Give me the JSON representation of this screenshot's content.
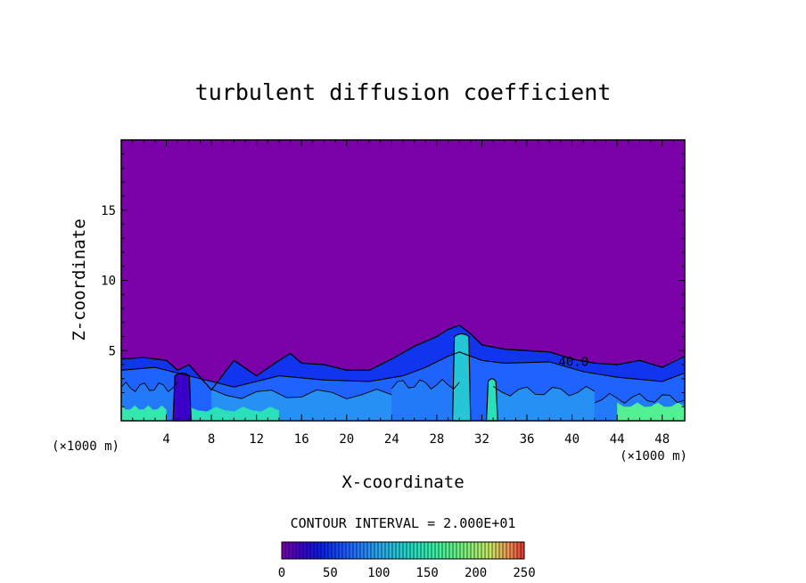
{
  "chart_data": {
    "type": "heatmap",
    "title": "turbulent diffusion coefficient",
    "xlabel": "X-coordinate",
    "ylabel": "Z-coordinate",
    "x_unit": "(×1000 m)",
    "y_unit": "(×1000 m)",
    "xlim": [
      0,
      50
    ],
    "ylim": [
      0,
      20
    ],
    "x_ticks": [
      4,
      8,
      12,
      16,
      20,
      24,
      28,
      32,
      36,
      40,
      44,
      48
    ],
    "y_ticks": [
      5,
      10,
      15
    ],
    "contour_interval_text": "CONTOUR INTERVAL = 2.000E+01",
    "contour_label": "40.0",
    "contour_label_pos": [
      38.8,
      3.9
    ],
    "colorbar": {
      "min": 0,
      "max": 250,
      "ticks": [
        0,
        50,
        100,
        150,
        200,
        250
      ]
    },
    "background_value": 0,
    "boundary_layer_top": [
      [
        0,
        4.4
      ],
      [
        2,
        4.5
      ],
      [
        4,
        4.3
      ],
      [
        5,
        3.6
      ],
      [
        6,
        4.0
      ],
      [
        8,
        2.2
      ],
      [
        10,
        4.3
      ],
      [
        12,
        3.2
      ],
      [
        14,
        4.3
      ],
      [
        15,
        4.8
      ],
      [
        16,
        4.1
      ],
      [
        18,
        4.0
      ],
      [
        20,
        3.6
      ],
      [
        22,
        3.6
      ],
      [
        24,
        4.4
      ],
      [
        26,
        5.3
      ],
      [
        28,
        6.0
      ],
      [
        29,
        6.5
      ],
      [
        30,
        6.8
      ],
      [
        31,
        6.2
      ],
      [
        32,
        5.4
      ],
      [
        34,
        5.1
      ],
      [
        36,
        5.0
      ],
      [
        38,
        4.9
      ],
      [
        40,
        4.4
      ],
      [
        42,
        4.1
      ],
      [
        44,
        4.0
      ],
      [
        46,
        4.3
      ],
      [
        48,
        3.8
      ],
      [
        50,
        4.6
      ]
    ],
    "contour_40_line": [
      [
        0,
        3.6
      ],
      [
        3,
        3.8
      ],
      [
        6,
        3.2
      ],
      [
        10,
        2.4
      ],
      [
        14,
        3.2
      ],
      [
        18,
        2.9
      ],
      [
        22,
        2.8
      ],
      [
        25,
        3.2
      ],
      [
        27,
        3.8
      ],
      [
        29,
        4.6
      ],
      [
        30,
        4.9
      ],
      [
        32,
        4.3
      ],
      [
        34,
        4.1
      ],
      [
        38,
        4.2
      ],
      [
        41,
        3.5
      ],
      [
        44,
        3.1
      ],
      [
        48,
        2.8
      ],
      [
        50,
        3.4
      ]
    ],
    "mixed_layer_zones": [
      {
        "x": [
          0,
          5
        ],
        "z_top": 2.4,
        "value": 80
      },
      {
        "x": [
          8,
          24
        ],
        "z_top": 1.9,
        "value": 90
      },
      {
        "x": [
          24,
          30
        ],
        "z_top": 2.6,
        "value": 80
      },
      {
        "x": [
          33,
          42
        ],
        "z_top": 2.1,
        "value": 90
      },
      {
        "x": [
          42,
          50
        ],
        "z_top": 1.6,
        "value": 80
      }
    ],
    "surface_maxima": [
      {
        "x": [
          0,
          4
        ],
        "z_top": 0.9,
        "value": 150
      },
      {
        "x": [
          6,
          14
        ],
        "z_top": 0.8,
        "value": 140
      },
      {
        "x": [
          44,
          50
        ],
        "z_top": 1.1,
        "value": 170
      }
    ],
    "updraft_columns": [
      {
        "x": [
          4.6,
          6.2
        ],
        "z_top": 3.2,
        "value": 20
      },
      {
        "x": [
          29.4,
          31.0
        ],
        "z_top": 6.0,
        "value": 120
      },
      {
        "x": [
          32.4,
          33.4
        ],
        "z_top": 2.8,
        "value": 140
      }
    ],
    "colormap": [
      [
        0,
        "#7a00a8"
      ],
      [
        20,
        "#3a00c8"
      ],
      [
        40,
        "#0a1ee6"
      ],
      [
        70,
        "#1f63ff"
      ],
      [
        100,
        "#2aa7ee"
      ],
      [
        130,
        "#22d6c8"
      ],
      [
        160,
        "#3cf0a0"
      ],
      [
        190,
        "#7df07a"
      ],
      [
        215,
        "#c8e864"
      ],
      [
        235,
        "#ee9050"
      ],
      [
        250,
        "#e03030"
      ]
    ]
  }
}
